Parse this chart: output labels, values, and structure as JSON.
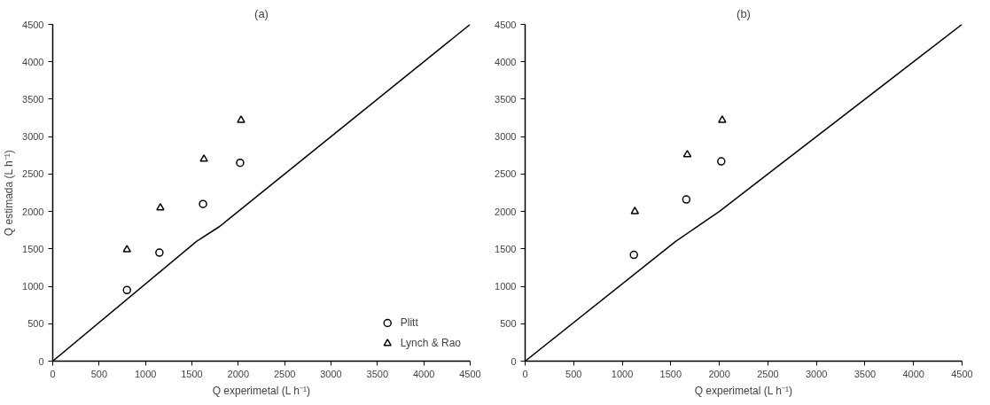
{
  "chart_data": [
    {
      "type": "scatter",
      "title": "(a)",
      "xlabel": "Q experimetal (L h⁻¹)",
      "ylabel": "Q estimada (L h⁻¹)",
      "xlim": [
        0,
        4500
      ],
      "ylim": [
        0,
        4500
      ],
      "xticks": [
        0,
        500,
        1000,
        1500,
        2000,
        2500,
        3000,
        3500,
        4000,
        4500
      ],
      "yticks": [
        0,
        500,
        1000,
        1500,
        2000,
        2500,
        3000,
        3500,
        4000,
        4500
      ],
      "grid": false,
      "legend": "bottom right",
      "series": [
        {
          "name": "Plitt",
          "color": "#000000",
          "marker": "circle",
          "x": [
            800,
            1150,
            1620,
            2020
          ],
          "values": [
            950,
            1450,
            2100,
            2650
          ]
        },
        {
          "name": "Lynch & Rao",
          "color": "#000000",
          "marker": "triangle",
          "x": [
            800,
            1160,
            1630,
            2030
          ],
          "values": [
            1490,
            2050,
            2700,
            3220
          ]
        },
        {
          "type": "line",
          "color": "#000000",
          "x": [
            0,
            1550,
            1800,
            2600,
            4500
          ],
          "values": [
            0,
            1600,
            1800,
            2600,
            4500
          ]
        }
      ]
    },
    {
      "type": "scatter",
      "title": "(b)",
      "xlabel": "Q experimetal (L h⁻¹)",
      "xlim": [
        0,
        4500
      ],
      "ylim": [
        0,
        4500
      ],
      "xticks": [
        0,
        500,
        1000,
        1500,
        2000,
        2500,
        3000,
        3500,
        4000,
        4500
      ],
      "yticks": [
        0,
        500,
        1000,
        1500,
        2000,
        2500,
        3000,
        3500,
        4000,
        4500
      ],
      "grid": false,
      "series": [
        {
          "color": "#000000",
          "marker": "circle",
          "x": [
            1120,
            1660,
            2020
          ],
          "values": [
            1420,
            2160,
            2670
          ]
        },
        {
          "color": "#000000",
          "marker": "triangle",
          "x": [
            1130,
            1670,
            2030
          ],
          "values": [
            2000,
            2760,
            3220
          ]
        },
        {
          "type": "line",
          "color": "#000000",
          "x": [
            0,
            1550,
            2000,
            2600,
            4500
          ],
          "values": [
            0,
            1600,
            2000,
            2600,
            4500
          ]
        }
      ]
    }
  ]
}
